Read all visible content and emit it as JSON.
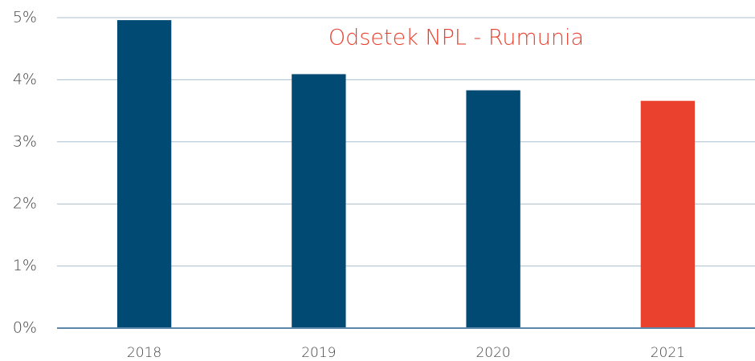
{
  "chart_data": {
    "type": "bar",
    "title": "Odsetek NPL - Rumunia",
    "categories": [
      "2018",
      "2019",
      "2020",
      "2021"
    ],
    "values": [
      4.96,
      4.09,
      3.83,
      3.66
    ],
    "colors": [
      "#004a73",
      "#004a73",
      "#004a73",
      "#ea412f"
    ],
    "ylim": [
      0,
      5
    ],
    "yticks": [
      {
        "value": 0,
        "label": "0%"
      },
      {
        "value": 1,
        "label": "1%"
      },
      {
        "value": 2,
        "label": "2%"
      },
      {
        "value": 3,
        "label": "3%"
      },
      {
        "value": 4,
        "label": "4%"
      },
      {
        "value": 5,
        "label": "5%"
      }
    ],
    "grid": true
  }
}
